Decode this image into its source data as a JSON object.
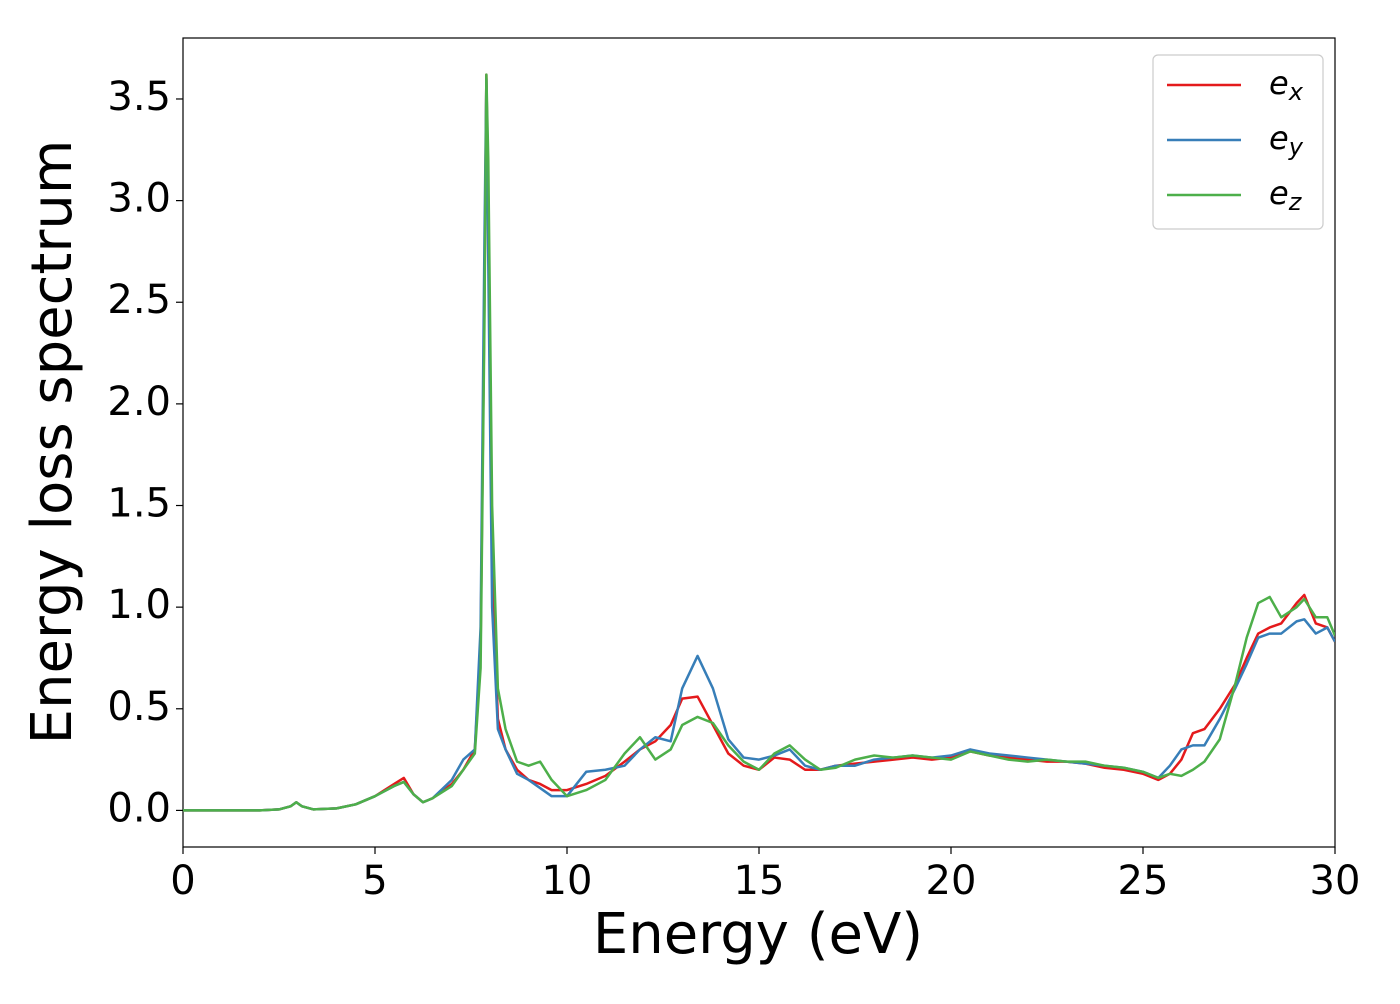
{
  "chart_data": {
    "type": "line",
    "xlabel": "Energy (eV)",
    "ylabel": "Energy loss spectrum",
    "x": [
      0,
      1,
      2,
      2.5,
      2.8,
      2.95,
      3.1,
      3.4,
      4,
      4.5,
      5,
      5.5,
      5.75,
      6,
      6.25,
      6.5,
      7,
      7.3,
      7.6,
      7.75,
      7.85,
      7.9,
      7.95,
      8.05,
      8.2,
      8.4,
      8.7,
      9,
      9.3,
      9.6,
      10,
      10.5,
      11,
      11.5,
      11.9,
      12.3,
      12.7,
      13,
      13.4,
      13.8,
      14.2,
      14.6,
      15,
      15.4,
      15.8,
      16.2,
      16.6,
      17,
      17.5,
      18,
      18.5,
      19,
      19.5,
      20,
      20.5,
      21,
      21.5,
      22,
      22.5,
      23,
      23.5,
      24,
      24.5,
      25,
      25.4,
      25.7,
      26,
      26.3,
      26.6,
      27,
      27.4,
      27.7,
      28,
      28.3,
      28.6,
      29,
      29.2,
      29.5,
      29.8,
      30
    ],
    "series": [
      {
        "name": "ex",
        "color": "#e41a1c",
        "values": [
          0,
          0,
          0,
          0.005,
          0.02,
          0.04,
          0.02,
          0.005,
          0.01,
          0.03,
          0.07,
          0.13,
          0.16,
          0.08,
          0.04,
          0.06,
          0.13,
          0.2,
          0.3,
          0.8,
          2.5,
          3.62,
          3.0,
          1.2,
          0.45,
          0.3,
          0.2,
          0.15,
          0.13,
          0.1,
          0.1,
          0.13,
          0.17,
          0.24,
          0.3,
          0.34,
          0.42,
          0.55,
          0.56,
          0.42,
          0.28,
          0.22,
          0.2,
          0.26,
          0.25,
          0.2,
          0.2,
          0.22,
          0.23,
          0.24,
          0.25,
          0.26,
          0.25,
          0.26,
          0.29,
          0.27,
          0.26,
          0.25,
          0.24,
          0.24,
          0.23,
          0.21,
          0.2,
          0.18,
          0.15,
          0.18,
          0.25,
          0.38,
          0.4,
          0.5,
          0.62,
          0.75,
          0.87,
          0.9,
          0.92,
          1.02,
          1.06,
          0.92,
          0.9,
          0.83
        ]
      },
      {
        "name": "ey",
        "color": "#377eb8",
        "values": [
          0,
          0,
          0,
          0.005,
          0.02,
          0.04,
          0.02,
          0.005,
          0.01,
          0.03,
          0.07,
          0.12,
          0.14,
          0.08,
          0.04,
          0.06,
          0.15,
          0.25,
          0.3,
          0.9,
          2.8,
          3.6,
          2.7,
          1.0,
          0.4,
          0.3,
          0.18,
          0.15,
          0.11,
          0.07,
          0.07,
          0.19,
          0.2,
          0.22,
          0.3,
          0.36,
          0.34,
          0.6,
          0.76,
          0.6,
          0.35,
          0.26,
          0.25,
          0.27,
          0.3,
          0.22,
          0.2,
          0.22,
          0.22,
          0.25,
          0.26,
          0.27,
          0.26,
          0.27,
          0.3,
          0.28,
          0.27,
          0.26,
          0.25,
          0.24,
          0.23,
          0.22,
          0.21,
          0.19,
          0.16,
          0.22,
          0.3,
          0.32,
          0.32,
          0.45,
          0.6,
          0.72,
          0.85,
          0.87,
          0.87,
          0.93,
          0.94,
          0.87,
          0.9,
          0.83
        ]
      },
      {
        "name": "ez",
        "color": "#4daf4a",
        "values": [
          0,
          0,
          0,
          0.005,
          0.02,
          0.04,
          0.02,
          0.005,
          0.01,
          0.03,
          0.07,
          0.12,
          0.14,
          0.08,
          0.04,
          0.06,
          0.12,
          0.2,
          0.28,
          0.7,
          2.4,
          3.62,
          3.2,
          1.5,
          0.6,
          0.4,
          0.24,
          0.22,
          0.24,
          0.15,
          0.07,
          0.1,
          0.15,
          0.28,
          0.36,
          0.25,
          0.3,
          0.42,
          0.46,
          0.43,
          0.32,
          0.24,
          0.2,
          0.28,
          0.32,
          0.25,
          0.2,
          0.21,
          0.25,
          0.27,
          0.26,
          0.27,
          0.26,
          0.25,
          0.29,
          0.27,
          0.25,
          0.24,
          0.25,
          0.24,
          0.24,
          0.22,
          0.21,
          0.19,
          0.16,
          0.18,
          0.17,
          0.2,
          0.24,
          0.35,
          0.62,
          0.85,
          1.02,
          1.05,
          0.95,
          1.0,
          1.04,
          0.95,
          0.95,
          0.86
        ]
      }
    ],
    "xlim": [
      0,
      30
    ],
    "xticks": [
      0,
      5,
      10,
      15,
      20,
      25,
      30
    ],
    "ylim": [
      -0.18,
      3.8
    ],
    "yticks": [
      {
        "value": 0,
        "label": "0.0"
      },
      0.5,
      {
        "value": 1,
        "label": "1.0"
      },
      1.5,
      {
        "value": 2,
        "label": "2.0"
      },
      2.5,
      {
        "value": 3,
        "label": "3.0"
      },
      3.5
    ],
    "legend": "upper right"
  }
}
